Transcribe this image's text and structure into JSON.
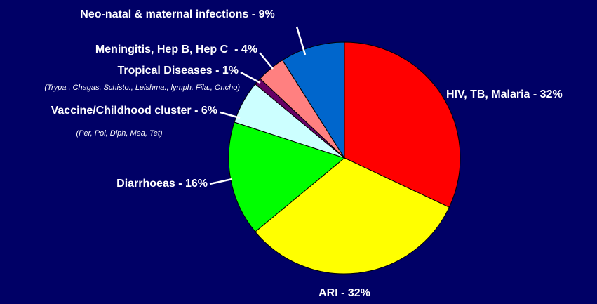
{
  "chart_data": {
    "type": "pie",
    "values": [
      32,
      32,
      16,
      6,
      1,
      4,
      9
    ],
    "value_labels": [
      "HIV, TB, Malaria - 32%",
      "ARI - 32%",
      "Diarrhoeas - 16%",
      "Vaccine/Childhood cluster - 6%",
      "Tropical Diseases - 1%",
      "Meningitis, Hep B, Hep C  - 4%",
      "Neo-natal & maternal infections - 9%"
    ],
    "colors": [
      "#ff0000",
      "#ffff00",
      "#00ff00",
      "#ccffff",
      "#660066",
      "#ff8080",
      "#0066cc"
    ],
    "annotations": [
      {
        "text": "(Trypa., Chagas, Schisto., Leishma., lymph. Fila., Oncho)"
      },
      {
        "text": "(Per, Pol, Diph, Mea, Tet)"
      }
    ]
  }
}
